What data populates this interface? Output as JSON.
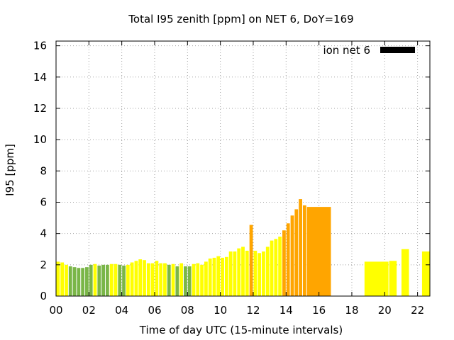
{
  "chart_data": {
    "type": "bar",
    "title": "Total I95 zenith [ppm] on NET 6, DoY=169",
    "xlabel": "Time of day UTC (15-minute intervals)",
    "ylabel": "I95 [ppm]",
    "xlim": [
      0,
      22.75
    ],
    "ylim": [
      0,
      16.3
    ],
    "xticks": [
      0,
      2,
      4,
      6,
      8,
      10,
      12,
      14,
      16,
      18,
      20,
      22
    ],
    "xtick_labels": [
      "00",
      "02",
      "04",
      "06",
      "08",
      "10",
      "12",
      "14",
      "16",
      "18",
      "20",
      "22"
    ],
    "yticks": [
      0,
      2,
      4,
      6,
      8,
      10,
      12,
      14,
      16
    ],
    "ytick_labels": [
      "0",
      "2",
      "4",
      "6",
      "8",
      "10",
      "12",
      "14",
      "16"
    ],
    "grid": true,
    "legend": {
      "position": "top-right",
      "entries": [
        {
          "label": "ion net 6",
          "color": "#000000"
        }
      ]
    },
    "colors": {
      "green": "#7ab648",
      "yellow": "#ffff00",
      "orange": "#ffa500",
      "legend": "#000000"
    },
    "bars": [
      {
        "x": 0.0,
        "w": 0.25,
        "v": 2.2,
        "c": "yellow"
      },
      {
        "x": 0.25,
        "w": 0.25,
        "v": 2.15,
        "c": "yellow"
      },
      {
        "x": 0.5,
        "w": 0.25,
        "v": 2.0,
        "c": "yellow"
      },
      {
        "x": 0.75,
        "w": 0.25,
        "v": 1.9,
        "c": "green"
      },
      {
        "x": 1.0,
        "w": 0.25,
        "v": 1.85,
        "c": "green"
      },
      {
        "x": 1.25,
        "w": 0.25,
        "v": 1.8,
        "c": "green"
      },
      {
        "x": 1.5,
        "w": 0.25,
        "v": 1.8,
        "c": "green"
      },
      {
        "x": 1.75,
        "w": 0.25,
        "v": 1.85,
        "c": "green"
      },
      {
        "x": 2.0,
        "w": 0.25,
        "v": 2.0,
        "c": "green"
      },
      {
        "x": 2.25,
        "w": 0.25,
        "v": 2.05,
        "c": "yellow"
      },
      {
        "x": 2.5,
        "w": 0.25,
        "v": 1.95,
        "c": "green"
      },
      {
        "x": 2.75,
        "w": 0.25,
        "v": 2.0,
        "c": "green"
      },
      {
        "x": 3.0,
        "w": 0.25,
        "v": 2.0,
        "c": "green"
      },
      {
        "x": 3.25,
        "w": 0.25,
        "v": 2.05,
        "c": "yellow"
      },
      {
        "x": 3.5,
        "w": 0.25,
        "v": 2.05,
        "c": "yellow"
      },
      {
        "x": 3.75,
        "w": 0.25,
        "v": 2.0,
        "c": "green"
      },
      {
        "x": 4.0,
        "w": 0.25,
        "v": 1.95,
        "c": "green"
      },
      {
        "x": 4.25,
        "w": 0.25,
        "v": 2.0,
        "c": "yellow"
      },
      {
        "x": 4.5,
        "w": 0.25,
        "v": 2.15,
        "c": "yellow"
      },
      {
        "x": 4.75,
        "w": 0.25,
        "v": 2.25,
        "c": "yellow"
      },
      {
        "x": 5.0,
        "w": 0.25,
        "v": 2.35,
        "c": "yellow"
      },
      {
        "x": 5.25,
        "w": 0.25,
        "v": 2.3,
        "c": "yellow"
      },
      {
        "x": 5.5,
        "w": 0.25,
        "v": 2.1,
        "c": "yellow"
      },
      {
        "x": 5.75,
        "w": 0.25,
        "v": 2.1,
        "c": "yellow"
      },
      {
        "x": 6.0,
        "w": 0.25,
        "v": 2.25,
        "c": "yellow"
      },
      {
        "x": 6.25,
        "w": 0.25,
        "v": 2.1,
        "c": "yellow"
      },
      {
        "x": 6.5,
        "w": 0.25,
        "v": 2.1,
        "c": "yellow"
      },
      {
        "x": 6.75,
        "w": 0.25,
        "v": 2.0,
        "c": "green"
      },
      {
        "x": 7.0,
        "w": 0.25,
        "v": 2.05,
        "c": "yellow"
      },
      {
        "x": 7.25,
        "w": 0.25,
        "v": 1.9,
        "c": "green"
      },
      {
        "x": 7.5,
        "w": 0.25,
        "v": 2.1,
        "c": "yellow"
      },
      {
        "x": 7.75,
        "w": 0.25,
        "v": 1.9,
        "c": "green"
      },
      {
        "x": 8.0,
        "w": 0.25,
        "v": 1.9,
        "c": "green"
      },
      {
        "x": 8.25,
        "w": 0.25,
        "v": 2.05,
        "c": "yellow"
      },
      {
        "x": 8.5,
        "w": 0.25,
        "v": 2.1,
        "c": "yellow"
      },
      {
        "x": 8.75,
        "w": 0.25,
        "v": 2.0,
        "c": "yellow"
      },
      {
        "x": 9.0,
        "w": 0.25,
        "v": 2.2,
        "c": "yellow"
      },
      {
        "x": 9.25,
        "w": 0.25,
        "v": 2.4,
        "c": "yellow"
      },
      {
        "x": 9.5,
        "w": 0.25,
        "v": 2.45,
        "c": "yellow"
      },
      {
        "x": 9.75,
        "w": 0.25,
        "v": 2.55,
        "c": "yellow"
      },
      {
        "x": 10.0,
        "w": 0.25,
        "v": 2.45,
        "c": "yellow"
      },
      {
        "x": 10.25,
        "w": 0.25,
        "v": 2.5,
        "c": "yellow"
      },
      {
        "x": 10.5,
        "w": 0.25,
        "v": 2.85,
        "c": "yellow"
      },
      {
        "x": 10.75,
        "w": 0.25,
        "v": 2.85,
        "c": "yellow"
      },
      {
        "x": 11.0,
        "w": 0.25,
        "v": 3.05,
        "c": "yellow"
      },
      {
        "x": 11.25,
        "w": 0.25,
        "v": 3.15,
        "c": "yellow"
      },
      {
        "x": 11.5,
        "w": 0.25,
        "v": 2.9,
        "c": "yellow"
      },
      {
        "x": 11.75,
        "w": 0.25,
        "v": 4.55,
        "c": "orange"
      },
      {
        "x": 12.0,
        "w": 0.25,
        "v": 2.9,
        "c": "yellow"
      },
      {
        "x": 12.25,
        "w": 0.25,
        "v": 2.75,
        "c": "yellow"
      },
      {
        "x": 12.5,
        "w": 0.25,
        "v": 2.85,
        "c": "yellow"
      },
      {
        "x": 12.75,
        "w": 0.25,
        "v": 3.15,
        "c": "yellow"
      },
      {
        "x": 13.0,
        "w": 0.25,
        "v": 3.55,
        "c": "yellow"
      },
      {
        "x": 13.25,
        "w": 0.25,
        "v": 3.65,
        "c": "yellow"
      },
      {
        "x": 13.5,
        "w": 0.25,
        "v": 3.8,
        "c": "yellow"
      },
      {
        "x": 13.75,
        "w": 0.25,
        "v": 4.2,
        "c": "orange"
      },
      {
        "x": 14.0,
        "w": 0.25,
        "v": 4.65,
        "c": "orange"
      },
      {
        "x": 14.25,
        "w": 0.25,
        "v": 5.15,
        "c": "orange"
      },
      {
        "x": 14.5,
        "w": 0.25,
        "v": 5.55,
        "c": "orange"
      },
      {
        "x": 14.75,
        "w": 0.25,
        "v": 6.2,
        "c": "orange"
      },
      {
        "x": 15.0,
        "w": 0.25,
        "v": 5.8,
        "c": "orange"
      },
      {
        "x": 15.25,
        "w": 1.5,
        "v": 5.7,
        "c": "orange"
      },
      {
        "x": 18.75,
        "w": 1.5,
        "v": 2.2,
        "c": "yellow"
      },
      {
        "x": 20.25,
        "w": 0.5,
        "v": 2.25,
        "c": "yellow"
      },
      {
        "x": 21.0,
        "w": 0.5,
        "v": 3.0,
        "c": "yellow"
      },
      {
        "x": 22.25,
        "w": 0.5,
        "v": 2.85,
        "c": "yellow"
      }
    ]
  }
}
